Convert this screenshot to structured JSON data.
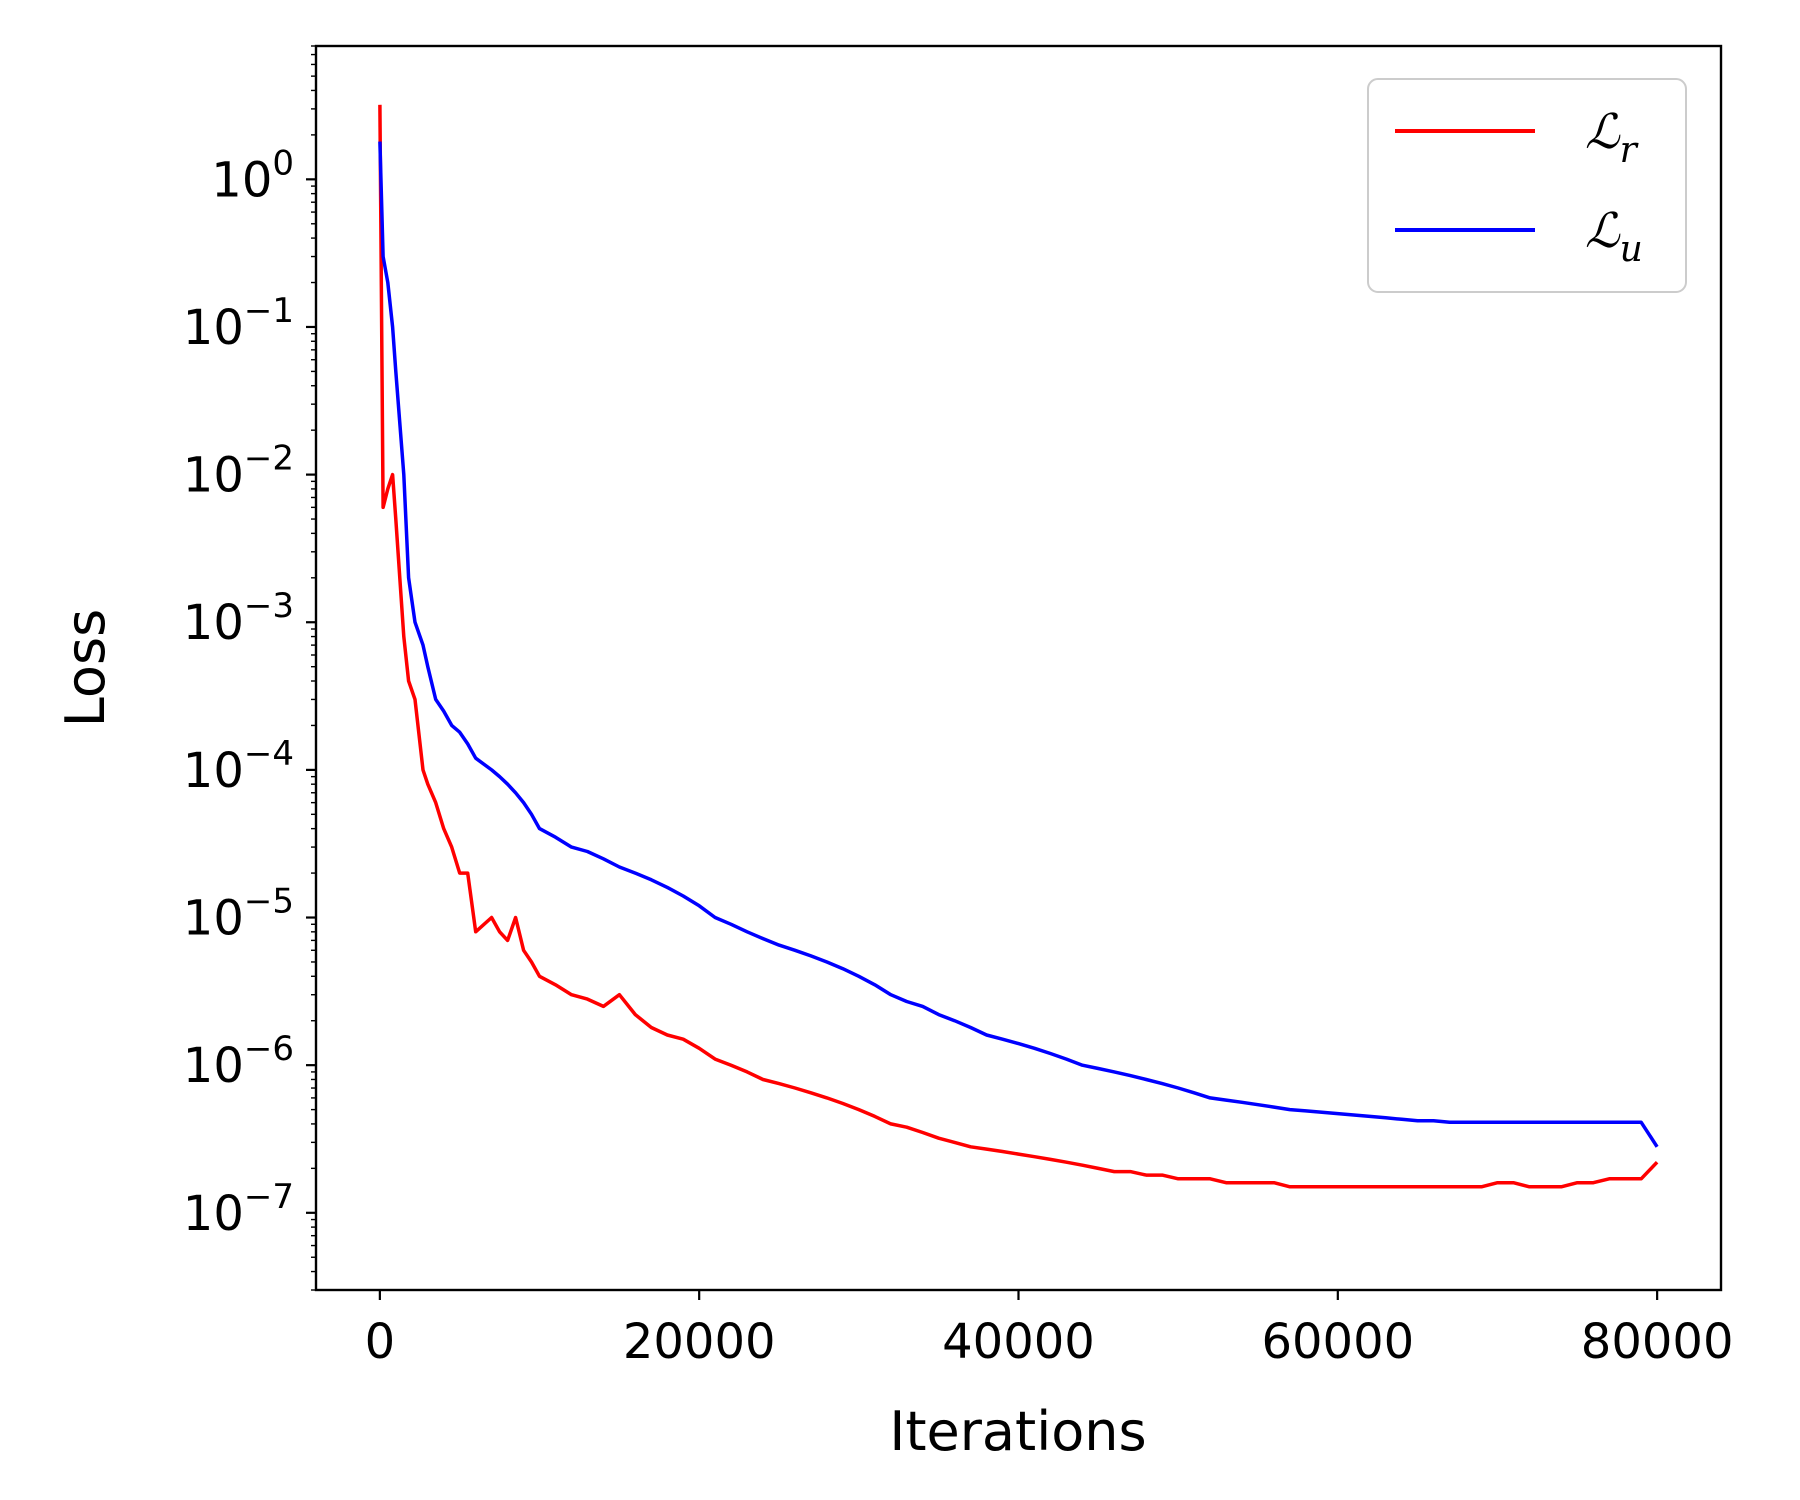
{
  "chart_data": {
    "type": "line",
    "title": "",
    "xlabel": "Iterations",
    "ylabel": "Loss",
    "y_scale": "log",
    "xlim": [
      -4000,
      84000
    ],
    "ylim": [
      3e-08,
      8
    ],
    "x_ticks": [
      0,
      20000,
      40000,
      60000,
      80000
    ],
    "x_tick_labels": [
      "0",
      "20000",
      "40000",
      "60000",
      "80000"
    ],
    "y_ticks": [
      {
        "value": 1e-07,
        "base": "10",
        "exp": "−7"
      },
      {
        "value": 1e-06,
        "base": "10",
        "exp": "−6"
      },
      {
        "value": 1e-05,
        "base": "10",
        "exp": "−5"
      },
      {
        "value": 0.0001,
        "base": "10",
        "exp": "−4"
      },
      {
        "value": 0.001,
        "base": "10",
        "exp": "−3"
      },
      {
        "value": 0.01,
        "base": "10",
        "exp": "−2"
      },
      {
        "value": 0.1,
        "base": "10",
        "exp": "−1"
      },
      {
        "value": 1,
        "base": "10",
        "exp": "0"
      }
    ],
    "grid": false,
    "legend_position": "top-right",
    "series": [
      {
        "name": "ℒ_r",
        "label_main": "ℒ",
        "label_sub": "r",
        "color": "#ff0000",
        "x": [
          0,
          200,
          500,
          800,
          1000,
          1500,
          1800,
          2200,
          2700,
          3000,
          3500,
          4000,
          4500,
          5000,
          5500,
          6000,
          7000,
          7500,
          8000,
          8500,
          9000,
          9500,
          10000,
          11000,
          12000,
          13000,
          14000,
          15000,
          16000,
          17000,
          18000,
          19000,
          20000,
          21000,
          22000,
          23000,
          24000,
          25000,
          26000,
          27000,
          28000,
          29000,
          30000,
          31000,
          32000,
          33000,
          34000,
          35000,
          36000,
          37000,
          38000,
          39000,
          40000,
          41000,
          42000,
          43000,
          44000,
          45000,
          46000,
          47000,
          48000,
          49000,
          50000,
          51000,
          52000,
          53000,
          54000,
          55000,
          56000,
          57000,
          58000,
          59000,
          60000,
          61000,
          62000,
          63000,
          64000,
          65000,
          66000,
          67000,
          68000,
          69000,
          70000,
          71000,
          72000,
          73000,
          74000,
          75000,
          76000,
          77000,
          78000,
          79000,
          80000
        ],
        "y": [
          3.2,
          0.006,
          0.008,
          0.01,
          0.005,
          0.0008,
          0.0004,
          0.0003,
          0.0001,
          8e-05,
          6e-05,
          4e-05,
          3e-05,
          2e-05,
          2e-05,
          8e-06,
          1e-05,
          8e-06,
          7e-06,
          1e-05,
          6e-06,
          5e-06,
          4e-06,
          3.5e-06,
          3e-06,
          2.8e-06,
          2.5e-06,
          3e-06,
          2.2e-06,
          1.8e-06,
          1.6e-06,
          1.5e-06,
          1.3e-06,
          1.1e-06,
          1e-06,
          9e-07,
          8e-07,
          7.5e-07,
          7e-07,
          6.5e-07,
          6e-07,
          5.5e-07,
          5e-07,
          4.5e-07,
          4e-07,
          3.8e-07,
          3.5e-07,
          3.2e-07,
          3e-07,
          2.8e-07,
          2.7e-07,
          2.6e-07,
          2.5e-07,
          2.4e-07,
          2.3e-07,
          2.2e-07,
          2.1e-07,
          2e-07,
          1.9e-07,
          1.9e-07,
          1.8e-07,
          1.8e-07,
          1.7e-07,
          1.7e-07,
          1.7e-07,
          1.6e-07,
          1.6e-07,
          1.6e-07,
          1.6e-07,
          1.5e-07,
          1.5e-07,
          1.5e-07,
          1.5e-07,
          1.5e-07,
          1.5e-07,
          1.5e-07,
          1.5e-07,
          1.5e-07,
          1.5e-07,
          1.5e-07,
          1.5e-07,
          1.5e-07,
          1.6e-07,
          1.6e-07,
          1.5e-07,
          1.5e-07,
          1.5e-07,
          1.6e-07,
          1.6e-07,
          1.7e-07,
          1.7e-07,
          1.7e-07,
          2.2e-07
        ]
      },
      {
        "name": "ℒ_u",
        "label_main": "ℒ",
        "label_sub": "u",
        "color": "#0000ff",
        "x": [
          0,
          200,
          500,
          800,
          1000,
          1500,
          1800,
          2200,
          2700,
          3000,
          3500,
          4000,
          4500,
          5000,
          5500,
          6000,
          7000,
          7500,
          8000,
          8500,
          9000,
          9500,
          10000,
          11000,
          12000,
          13000,
          14000,
          15000,
          16000,
          17000,
          18000,
          19000,
          20000,
          21000,
          22000,
          23000,
          24000,
          25000,
          26000,
          27000,
          28000,
          29000,
          30000,
          31000,
          32000,
          33000,
          34000,
          35000,
          36000,
          37000,
          38000,
          39000,
          40000,
          41000,
          42000,
          43000,
          44000,
          45000,
          46000,
          47000,
          48000,
          49000,
          50000,
          51000,
          52000,
          53000,
          54000,
          55000,
          56000,
          57000,
          58000,
          59000,
          60000,
          61000,
          62000,
          63000,
          64000,
          65000,
          66000,
          67000,
          68000,
          69000,
          70000,
          71000,
          72000,
          73000,
          74000,
          75000,
          76000,
          77000,
          78000,
          79000,
          80000
        ],
        "y": [
          1.8,
          0.3,
          0.2,
          0.1,
          0.05,
          0.01,
          0.002,
          0.001,
          0.0007,
          0.0005,
          0.0003,
          0.00025,
          0.0002,
          0.00018,
          0.00015,
          0.00012,
          0.0001,
          9e-05,
          8e-05,
          7e-05,
          6e-05,
          5e-05,
          4e-05,
          3.5e-05,
          3e-05,
          2.8e-05,
          2.5e-05,
          2.2e-05,
          2e-05,
          1.8e-05,
          1.6e-05,
          1.4e-05,
          1.2e-05,
          1e-05,
          9e-06,
          8e-06,
          7.2e-06,
          6.5e-06,
          6e-06,
          5.5e-06,
          5e-06,
          4.5e-06,
          4e-06,
          3.5e-06,
          3e-06,
          2.7e-06,
          2.5e-06,
          2.2e-06,
          2e-06,
          1.8e-06,
          1.6e-06,
          1.5e-06,
          1.4e-06,
          1.3e-06,
          1.2e-06,
          1.1e-06,
          1e-06,
          9.5e-07,
          9e-07,
          8.5e-07,
          8e-07,
          7.5e-07,
          7e-07,
          6.5e-07,
          6e-07,
          5.8e-07,
          5.6e-07,
          5.4e-07,
          5.2e-07,
          5e-07,
          4.9e-07,
          4.8e-07,
          4.7e-07,
          4.6e-07,
          4.5e-07,
          4.4e-07,
          4.3e-07,
          4.2e-07,
          4.2e-07,
          4.1e-07,
          4.1e-07,
          4.1e-07,
          4.1e-07,
          4.1e-07,
          4.1e-07,
          4.1e-07,
          4.1e-07,
          4.1e-07,
          4.1e-07,
          4.1e-07,
          4.1e-07,
          4.1e-07,
          2.8e-07
        ]
      }
    ]
  }
}
